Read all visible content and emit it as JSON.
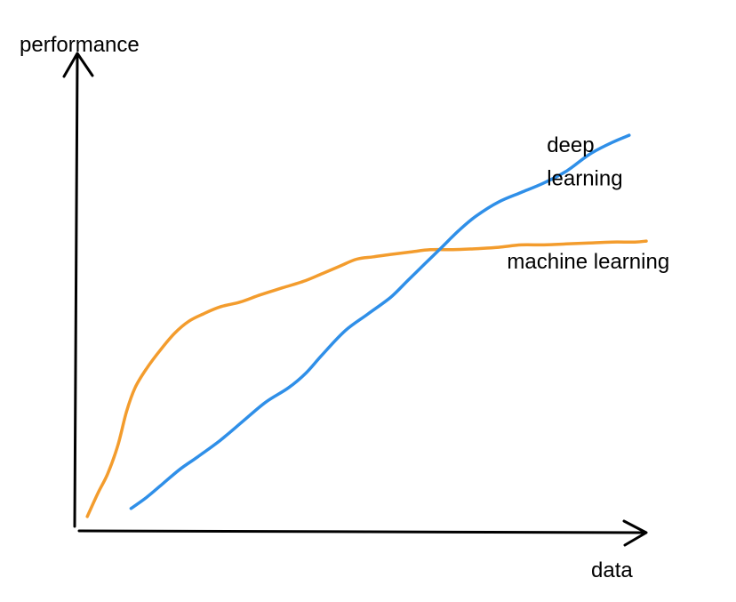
{
  "chart_data": {
    "type": "line",
    "title": "",
    "xlabel": "data",
    "ylabel": "performance",
    "xlim": [
      0,
      100
    ],
    "ylim": [
      0,
      100
    ],
    "grid": false,
    "legend": "none",
    "series": [
      {
        "name": "machine learning",
        "color": "#f39c2d",
        "x": [
          1.6,
          3.5,
          5.2,
          7.0,
          8.5,
          10.0,
          12.0,
          14.5,
          17.0,
          19.5,
          22.0,
          25.0,
          28.5,
          32.0,
          36.0,
          40.0,
          43.0,
          46.0,
          49.0,
          52.0,
          55.0,
          58.5,
          62.0,
          66.0,
          70.0,
          74.0,
          78.0,
          82.0,
          86.0,
          90.0,
          94.0,
          98.0,
          100.0
        ],
        "y": [
          3.0,
          8.0,
          12.0,
          18.0,
          25.0,
          30.0,
          34.0,
          38.0,
          41.5,
          44.0,
          45.5,
          47.0,
          48.0,
          49.5,
          51.0,
          52.5,
          54.0,
          55.5,
          57.0,
          57.5,
          58.0,
          58.5,
          59.0,
          59.0,
          59.2,
          59.5,
          60.0,
          60.0,
          60.2,
          60.4,
          60.6,
          60.6,
          60.8
        ]
      },
      {
        "name": "deep learning",
        "color": "#2f8fe8",
        "x": [
          9.3,
          12.0,
          15.0,
          18.0,
          21.0,
          25.0,
          29.0,
          33.0,
          37.0,
          40.0,
          43.0,
          47.0,
          51.0,
          55.0,
          58.0,
          61.0,
          64.0,
          67.0,
          70.0,
          74.0,
          78.0,
          82.0,
          86.0,
          90.0,
          94.0,
          97.0
        ],
        "y": [
          4.7,
          7.0,
          10.0,
          13.0,
          15.5,
          19.0,
          23.0,
          27.0,
          30.0,
          33.0,
          37.0,
          42.0,
          45.5,
          49.0,
          52.5,
          56.0,
          59.5,
          63.0,
          66.0,
          69.0,
          71.0,
          73.0,
          75.5,
          79.0,
          81.5,
          83.0
        ]
      }
    ],
    "annotations": [
      {
        "id": "dl-line1",
        "text": "deep",
        "x": 82.5,
        "y": 79.5
      },
      {
        "id": "dl-line2",
        "text": "learning",
        "x": 82.5,
        "y": 72.5
      },
      {
        "id": "ml",
        "text": "machine learning",
        "x": 75.5,
        "y": 55.0
      }
    ]
  }
}
